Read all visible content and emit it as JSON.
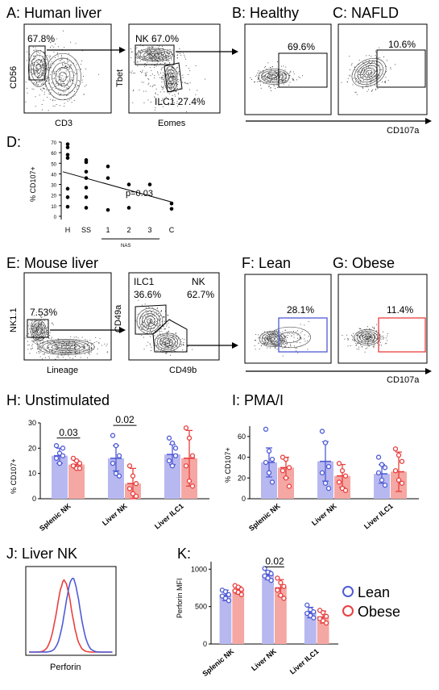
{
  "colors": {
    "lean": "#4f5bd5",
    "obese": "#e8403f",
    "lean_fill": "#b8b8f0",
    "obese_fill": "#f5a7a3"
  },
  "panelA": {
    "title": "A: Human liver",
    "plot1": {
      "ylabel": "CD56",
      "xlabel": "CD3",
      "gate_pct": "67.8%"
    },
    "plot2": {
      "ylabel": "Tbet",
      "xlabel": "Eomes",
      "nk_label": "NK 67.0%",
      "ilc1_label": "ILC1 27.4%"
    }
  },
  "panelB": {
    "title": "B: Healthy",
    "gate_pct": "69.6%"
  },
  "panelC": {
    "title": "C: NAFLD",
    "gate_pct": "10.6%"
  },
  "panelBC_xlabel": "CD107a",
  "panelD": {
    "title": "D:",
    "ylabel": "% CD107+",
    "yticks": [
      "0",
      "10",
      "20",
      "30",
      "40",
      "50",
      "60",
      "70"
    ],
    "categories": [
      "H",
      "SS",
      "1",
      "2",
      "3",
      "C"
    ],
    "nas_label": "NAS",
    "pvalue": "p=0.03"
  },
  "panelE": {
    "title": "E: Mouse liver",
    "plot1": {
      "ylabel": "NK1.1",
      "xlabel": "Lineage",
      "gate_pct": "7.53%"
    },
    "plot2": {
      "ylabel": "CD49a",
      "xlabel": "CD49b",
      "ilc1_name": "ILC1",
      "ilc1_pct": "36.6%",
      "nk_name": "NK",
      "nk_pct": "62.7%"
    }
  },
  "panelF": {
    "title": "F: Lean",
    "gate_pct": "28.1%"
  },
  "panelG": {
    "title": "G: Obese",
    "gate_pct": "11.4%"
  },
  "panelFG_xlabel": "CD107a",
  "panelH": {
    "title": "H: Unstimulated",
    "ylabel": "% CD107+",
    "yticks": [
      "0",
      "10",
      "20",
      "30"
    ],
    "groups": [
      "Splenic NK",
      "Liver NK",
      "Liver ILC1"
    ],
    "sig": [
      "0.03",
      "0.02"
    ]
  },
  "panelI": {
    "title": "I: PMA/I",
    "ylabel": "% CD107+",
    "yticks": [
      "0",
      "20",
      "40",
      "60"
    ],
    "groups": [
      "Splenic NK",
      "Liver NK",
      "Liver ILC1"
    ]
  },
  "panelJ": {
    "title": "J: Liver NK",
    "xlabel": "Perforin"
  },
  "panelK": {
    "title": "K:",
    "ylabel": "Perforin MFI",
    "yticks": [
      "0",
      "500",
      "1000"
    ],
    "groups": [
      "Splenic NK",
      "Liver NK",
      "Liver ILC1"
    ],
    "sig": "0.02"
  },
  "legend": {
    "lean": "Lean",
    "obese": "Obese"
  },
  "chart_data": [
    {
      "type": "scatter",
      "panel": "D",
      "ylabel": "% CD107+",
      "ylim": [
        0,
        70
      ],
      "categories": [
        "H",
        "SS",
        "1",
        "2",
        "3",
        "C"
      ],
      "points": [
        {
          "x": "H",
          "y": 68
        },
        {
          "x": "H",
          "y": 65
        },
        {
          "x": "H",
          "y": 58
        },
        {
          "x": "H",
          "y": 55
        },
        {
          "x": "H",
          "y": 26
        },
        {
          "x": "H",
          "y": 18
        },
        {
          "x": "H",
          "y": 9
        },
        {
          "x": "SS",
          "y": 53
        },
        {
          "x": "SS",
          "y": 51
        },
        {
          "x": "SS",
          "y": 42
        },
        {
          "x": "SS",
          "y": 36
        },
        {
          "x": "SS",
          "y": 27
        },
        {
          "x": "SS",
          "y": 18
        },
        {
          "x": "SS",
          "y": 8
        },
        {
          "x": "1",
          "y": 47
        },
        {
          "x": "1",
          "y": 36
        },
        {
          "x": "1",
          "y": 6
        },
        {
          "x": "2",
          "y": 30
        },
        {
          "x": "2",
          "y": 8
        },
        {
          "x": "3",
          "y": 30
        },
        {
          "x": "C",
          "y": 12
        },
        {
          "x": "C",
          "y": 7
        }
      ],
      "trend": [
        42,
        13
      ]
    },
    {
      "type": "bar",
      "panel": "H",
      "ylabel": "% CD107+",
      "ylim": [
        0,
        30
      ],
      "categories": [
        "Splenic NK",
        "Liver NK",
        "Liver ILC1"
      ],
      "series": [
        {
          "name": "Lean",
          "values": [
            17,
            16,
            17.5
          ],
          "err": [
            3,
            5,
            4
          ],
          "points": [
            [
              21,
              18,
              17,
              16,
              14,
              20
            ],
            [
              25,
              21,
              17,
              14,
              10,
              9
            ],
            [
              24,
              22,
              17,
              15,
              13,
              20
            ]
          ]
        },
        {
          "name": "Obese",
          "values": [
            13.5,
            6,
            16
          ],
          "err": [
            1.5,
            6,
            11
          ],
          "points": [
            [
              16,
              15,
              14,
              13,
              12,
              12
            ],
            [
              13,
              9,
              6,
              4,
              2,
              1
            ],
            [
              28,
              24,
              17,
              13,
              7,
              5
            ]
          ]
        }
      ]
    },
    {
      "type": "bar",
      "panel": "I",
      "ylabel": "% CD107+",
      "ylim": [
        0,
        70
      ],
      "categories": [
        "Splenic NK",
        "Liver NK",
        "Liver ILC1"
      ],
      "series": [
        {
          "name": "Lean",
          "values": [
            35,
            36,
            24
          ],
          "err": [
            14,
            19,
            9
          ],
          "points": [
            [
              67,
              46,
              38,
              35,
              25,
              16
            ],
            [
              65,
              54,
              31,
              25,
              15,
              10
            ],
            [
              40,
              33,
              30,
              25,
              18,
              13
            ]
          ]
        },
        {
          "name": "Obese",
          "values": [
            30,
            22,
            26
          ],
          "err": [
            10,
            11,
            19
          ],
          "points": [
            [
              40,
              38,
              30,
              27,
              20,
              12
            ],
            [
              34,
              27,
              22,
              16,
              10,
              8
            ],
            [
              48,
              42,
              36,
              27,
              18,
              15
            ]
          ]
        }
      ]
    },
    {
      "type": "line",
      "panel": "J",
      "xlabel": "Perforin",
      "series": [
        {
          "name": "Lean",
          "peak_position": 0.52
        },
        {
          "name": "Obese",
          "peak_position": 0.42
        }
      ]
    },
    {
      "type": "bar",
      "panel": "K",
      "ylabel": "Perforin MFI",
      "ylim": [
        0,
        1100
      ],
      "categories": [
        "Splenic NK",
        "Liver NK",
        "Liver ILC1"
      ],
      "series": [
        {
          "name": "Lean",
          "values": [
            650,
            920,
            420
          ],
          "err": [
            70,
            60,
            70
          ],
          "points": [
            [
              720,
              700,
              660,
              640,
              610,
              580
            ],
            [
              1010,
              960,
              940,
              910,
              880,
              850
            ],
            [
              520,
              460,
              430,
              410,
              380,
              350
            ]
          ]
        },
        {
          "name": "Obese",
          "values": [
            720,
            750,
            360
          ],
          "err": [
            50,
            110,
            80
          ],
          "points": [
            [
              780,
              760,
              730,
              710,
              690,
              660
            ],
            [
              880,
              820,
              770,
              720,
              650,
              610
            ],
            [
              450,
              420,
              370,
              340,
              310,
              280
            ]
          ]
        }
      ]
    }
  ]
}
